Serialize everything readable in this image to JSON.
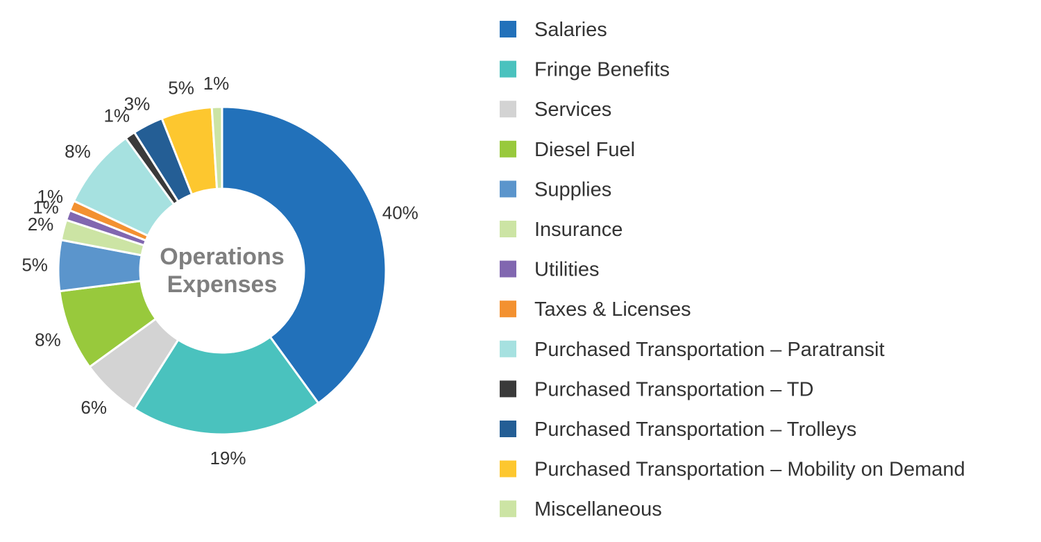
{
  "chart_data": {
    "type": "pie",
    "variant": "donut",
    "center_label": [
      "Operations",
      "Expenses"
    ],
    "legend_position": "right",
    "slices": [
      {
        "name": "Salaries",
        "value": 40,
        "label": "40%",
        "color": "#2271BA"
      },
      {
        "name": "Fringe Benefits",
        "value": 19,
        "label": "19%",
        "color": "#4AC2BE"
      },
      {
        "name": "Services",
        "value": 6,
        "label": "6%",
        "color": "#D3D3D3"
      },
      {
        "name": "Diesel Fuel",
        "value": 8,
        "label": "8%",
        "color": "#98C93C"
      },
      {
        "name": "Supplies",
        "value": 5,
        "label": "5%",
        "color": "#5B95CC"
      },
      {
        "name": "Insurance",
        "value": 2,
        "label": "2%",
        "color": "#CCE4A4"
      },
      {
        "name": "Utilities",
        "value": 1,
        "label": "1%",
        "color": "#8167B0"
      },
      {
        "name": "Taxes & Licenses",
        "value": 1,
        "label": "1%",
        "color": "#F39130"
      },
      {
        "name": "Purchased Transportation – Paratransit",
        "value": 8,
        "label": "8%",
        "color": "#A6E1E0"
      },
      {
        "name": "Purchased Transportation – TD",
        "value": 1,
        "label": "1%",
        "color": "#3A3A3A"
      },
      {
        "name": "Purchased Transportation – Trolleys",
        "value": 3,
        "label": "3%",
        "color": "#245E95"
      },
      {
        "name": "Purchased Transportation – Mobility on Demand",
        "value": 5,
        "label": "5%",
        "color": "#FDC72F"
      },
      {
        "name": "Miscellaneous",
        "value": 1,
        "label": "1%",
        "color": "#CCE4A4"
      }
    ]
  }
}
